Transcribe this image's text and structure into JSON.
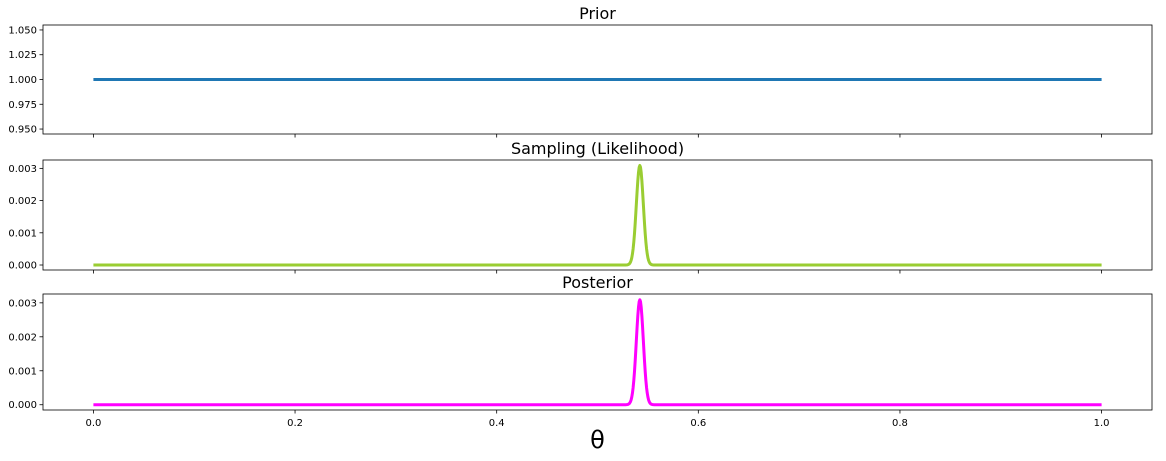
{
  "chart_data": [
    {
      "type": "line",
      "title": "Prior",
      "xlim": [
        -0.05,
        1.05
      ],
      "ylim": [
        0.945,
        1.055
      ],
      "xticks": [
        0.0,
        0.2,
        0.4,
        0.6,
        0.8,
        1.0
      ],
      "show_xtick_labels": false,
      "yticks": [
        0.95,
        0.975,
        1.0,
        1.025,
        1.05
      ],
      "ytick_labels": [
        "0.950",
        "0.975",
        "1.000",
        "1.025",
        "1.050"
      ],
      "series": [
        {
          "color": "#1f77b4",
          "shape": "constant",
          "value": 1.0,
          "x": [
            0.0,
            1.0
          ]
        }
      ]
    },
    {
      "type": "line",
      "title": "Sampling (Likelihood)",
      "xlim": [
        -0.05,
        1.05
      ],
      "ylim": [
        -0.000155,
        0.00326
      ],
      "xticks": [
        0.0,
        0.2,
        0.4,
        0.6,
        0.8,
        1.0
      ],
      "show_xtick_labels": false,
      "yticks": [
        0.0,
        0.001,
        0.002,
        0.003
      ],
      "ytick_labels": [
        "0.000",
        "0.001",
        "0.002",
        "0.003"
      ],
      "series": [
        {
          "color": "#9acd32",
          "shape": "peak",
          "peak_x": 0.542,
          "peak_y": 0.00309,
          "width": 0.0035,
          "x": [
            0.0,
            1.0
          ]
        }
      ]
    },
    {
      "type": "line",
      "title": "Posterior",
      "xlabel": "θ",
      "xlim": [
        -0.05,
        1.05
      ],
      "ylim": [
        -0.000155,
        0.00326
      ],
      "xticks": [
        0.0,
        0.2,
        0.4,
        0.6,
        0.8,
        1.0
      ],
      "xtick_labels": [
        "0.0",
        "0.2",
        "0.4",
        "0.6",
        "0.8",
        "1.0"
      ],
      "show_xtick_labels": true,
      "yticks": [
        0.0,
        0.001,
        0.002,
        0.003
      ],
      "ytick_labels": [
        "0.000",
        "0.001",
        "0.002",
        "0.003"
      ],
      "series": [
        {
          "color": "#ff00ff",
          "shape": "peak",
          "peak_x": 0.542,
          "peak_y": 0.00309,
          "width": 0.0035,
          "x": [
            0.0,
            1.0
          ]
        }
      ]
    }
  ]
}
